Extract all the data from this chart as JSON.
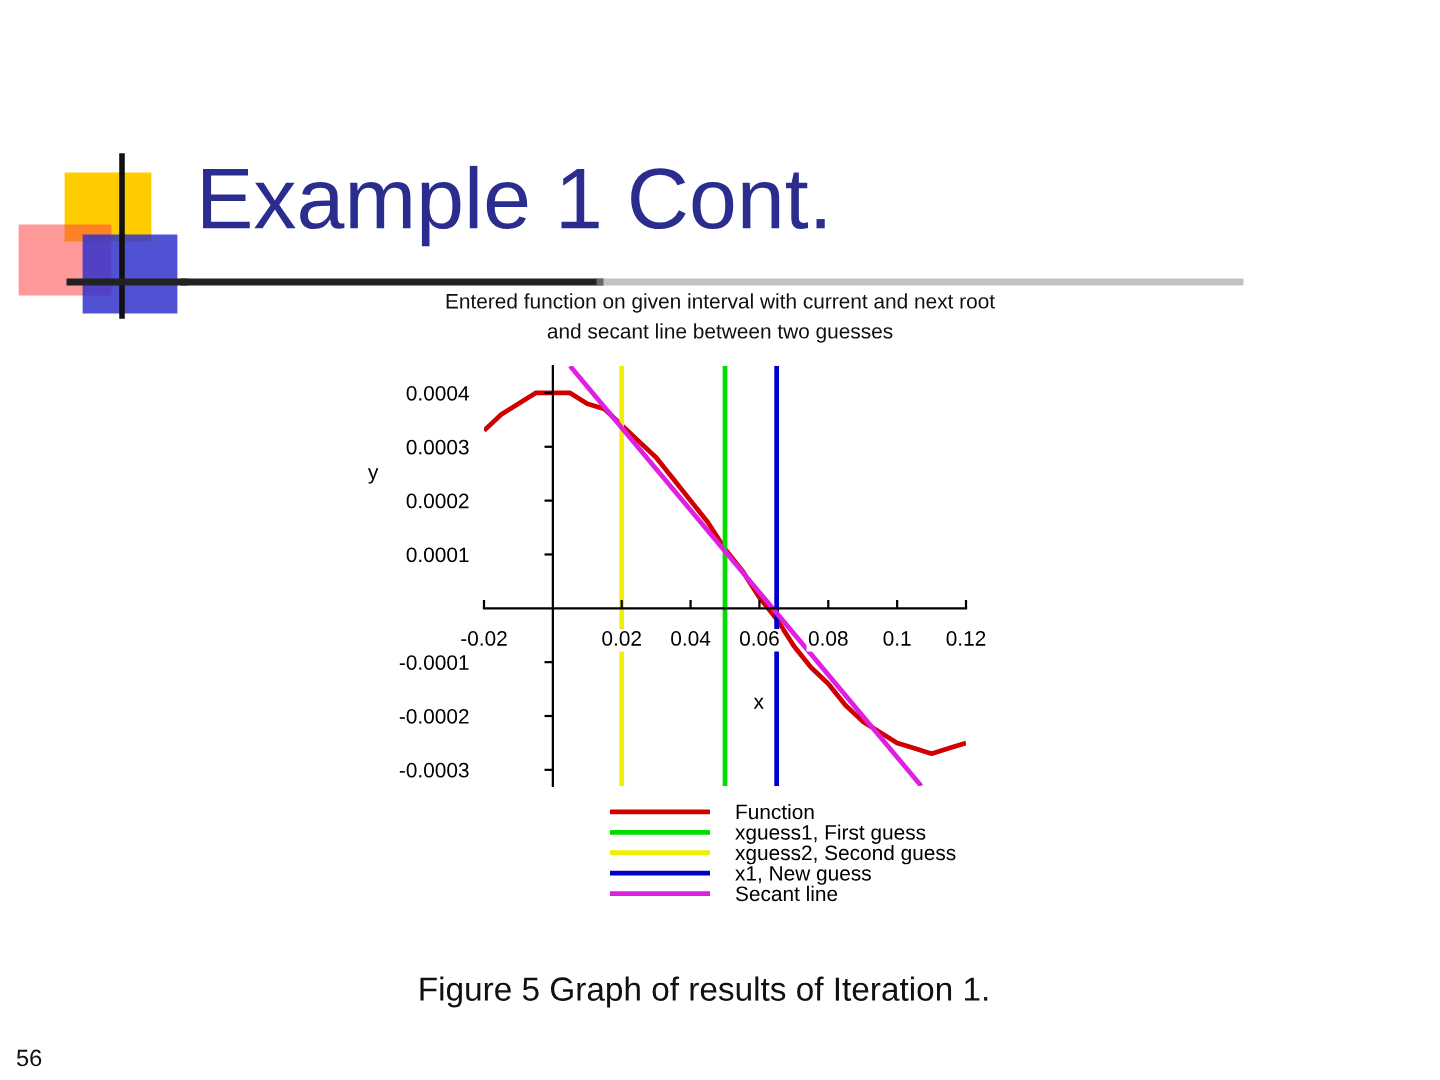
{
  "chart_data": {
    "type": "line",
    "title": "Example 1 Cont.",
    "subtitle": "Entered function on given interval with current and next root\nand secant line between two guesses",
    "xlabel": "x",
    "ylabel": "y",
    "xlim": [
      -0.02,
      0.12
    ],
    "ylim": [
      -0.00033,
      0.00045
    ],
    "xticks": [
      -0.02,
      0.02,
      0.04,
      0.06,
      0.08,
      0.1,
      0.12
    ],
    "yticks": [
      -0.0003,
      -0.0002,
      -0.0001,
      0.0001,
      0.0002,
      0.0003,
      0.0004
    ],
    "legend": "bottom",
    "series": [
      {
        "name": "Function",
        "color": "#d00000",
        "x": [
          -0.02,
          -0.015,
          -0.01,
          -0.005,
          0,
          0.005,
          0.01,
          0.015,
          0.02,
          0.025,
          0.03,
          0.035,
          0.04,
          0.045,
          0.05,
          0.055,
          0.06,
          0.065,
          0.07,
          0.075,
          0.08,
          0.085,
          0.09,
          0.095,
          0.1,
          0.105,
          0.11,
          0.115,
          0.12
        ],
        "values": [
          0.00033,
          0.00036,
          0.00038,
          0.0004,
          0.0004,
          0.0004,
          0.00038,
          0.00037,
          0.00034,
          0.00031,
          0.00028,
          0.00024,
          0.0002,
          0.00016,
          0.00011,
          7e-05,
          2e-05,
          -2e-05,
          -7e-05,
          -0.00011,
          -0.00014,
          -0.00018,
          -0.00021,
          -0.00023,
          -0.00025,
          -0.00026,
          -0.00027,
          -0.00026,
          -0.00025
        ]
      },
      {
        "name": "xguess1, First guess",
        "color": "#00dd00",
        "x": [
          0.05,
          0.05
        ],
        "values": [
          -0.00033,
          0.00045
        ]
      },
      {
        "name": "xguess2, Second guess",
        "color": "#f0f000",
        "x": [
          0.02,
          0.02
        ],
        "values": [
          -0.00033,
          0.00045
        ]
      },
      {
        "name": "x1, New guess",
        "color": "#0000c8",
        "x": [
          0.065,
          0.065
        ],
        "values": [
          -0.00033,
          0.00045
        ]
      },
      {
        "name": "Secant line",
        "color": "#e020e0",
        "x": [
          0.005,
          0.107
        ],
        "values": [
          0.00045,
          -0.00033
        ]
      }
    ],
    "annotations": [
      "Figure 5 Graph of results of Iteration 1.",
      "56"
    ]
  }
}
